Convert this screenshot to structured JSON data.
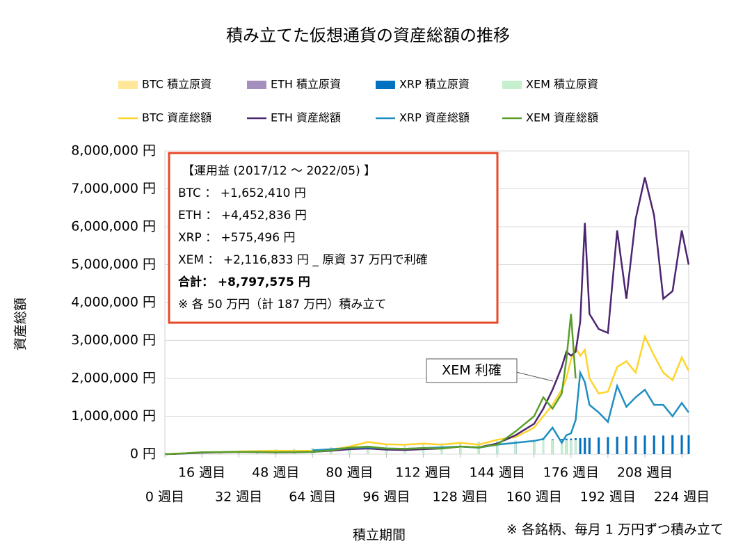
{
  "chart_data": {
    "type": "line",
    "title": "積み立てた仮想通貨の資産総額の推移",
    "xlabel": "積立期間",
    "ylabel": "資産総額",
    "note": "※ 各銘柄、毎月 1 万円ずつ積み立て",
    "callout": "XEM 利確",
    "annotation_box": {
      "heading": "【運用益 (2017/12 ～ 2022/05) 】",
      "lines": [
        "BTC ： +1,652,410 円",
        "ETH ： +4,452,836 円",
        "XRP ： +575,496 円",
        "XEM ： +2,116,833 円 _ 原資 37 万円で利確"
      ],
      "total": "合計： +8,797,575 円",
      "footnote": "※ 各 50 万円（計 187 万円）積み立て"
    },
    "grid": true,
    "xlim": [
      0,
      227
    ],
    "xticks": [
      {
        "value": 0,
        "label": "0 週目"
      },
      {
        "value": 16,
        "label": "16 週目"
      },
      {
        "value": 32,
        "label": "32 週目"
      },
      {
        "value": 48,
        "label": "48 週目"
      },
      {
        "value": 64,
        "label": "64 週目"
      },
      {
        "value": 80,
        "label": "80 週目"
      },
      {
        "value": 96,
        "label": "96 週目"
      },
      {
        "value": 112,
        "label": "112 週目"
      },
      {
        "value": 128,
        "label": "128 週目"
      },
      {
        "value": 144,
        "label": "144 週目"
      },
      {
        "value": 160,
        "label": "160 週目"
      },
      {
        "value": 176,
        "label": "176 週目"
      },
      {
        "value": 192,
        "label": "192 週目"
      },
      {
        "value": 208,
        "label": "208 週目"
      },
      {
        "value": 224,
        "label": "224 週目"
      }
    ],
    "ylim": [
      0,
      8000000
    ],
    "yticks": [
      {
        "value": 0,
        "label": "0 円"
      },
      {
        "value": 1000000,
        "label": "1,000,000 円"
      },
      {
        "value": 2000000,
        "label": "2,000,000 円"
      },
      {
        "value": 3000000,
        "label": "3,000,000 円"
      },
      {
        "value": 4000000,
        "label": "4,000,000 円"
      },
      {
        "value": 5000000,
        "label": "5,000,000 円"
      },
      {
        "value": 6000000,
        "label": "6,000,000 円"
      },
      {
        "value": 7000000,
        "label": "7,000,000 円"
      },
      {
        "value": 8000000,
        "label": "8,000,000 円"
      }
    ],
    "x": [
      0,
      8,
      16,
      24,
      32,
      40,
      48,
      56,
      64,
      72,
      80,
      88,
      96,
      104,
      112,
      120,
      128,
      136,
      144,
      152,
      160,
      164,
      168,
      172,
      174,
      176,
      178,
      180,
      182,
      184,
      188,
      192,
      196,
      200,
      204,
      208,
      212,
      216,
      220,
      224,
      227
    ],
    "series": [
      {
        "name": "BTC 積立原資",
        "type": "bar",
        "color": "#ffe699",
        "values": [
          10000,
          20000,
          40000,
          60000,
          80000,
          100000,
          120000,
          130000,
          150000,
          170000,
          190000,
          210000,
          230000,
          240000,
          260000,
          280000,
          300000,
          320000,
          340000,
          350000,
          370000,
          380000,
          390000,
          400000,
          410000,
          410000,
          420000,
          420000,
          430000,
          430000,
          440000,
          450000,
          460000,
          470000,
          480000,
          490000,
          490000,
          490000,
          500000,
          500000,
          500000
        ]
      },
      {
        "name": "ETH 積立原資",
        "type": "bar",
        "color": "#a48fbf",
        "values": [
          10000,
          20000,
          40000,
          60000,
          80000,
          100000,
          120000,
          130000,
          150000,
          170000,
          190000,
          210000,
          230000,
          240000,
          260000,
          280000,
          300000,
          320000,
          340000,
          350000,
          370000,
          380000,
          390000,
          400000,
          410000,
          410000,
          420000,
          420000,
          430000,
          430000,
          440000,
          450000,
          460000,
          470000,
          480000,
          490000,
          490000,
          490000,
          500000,
          500000,
          500000
        ]
      },
      {
        "name": "XRP 積立原資",
        "type": "bar",
        "color": "#0070c0",
        "values": [
          10000,
          20000,
          40000,
          60000,
          80000,
          100000,
          120000,
          130000,
          150000,
          170000,
          190000,
          210000,
          230000,
          240000,
          260000,
          280000,
          300000,
          320000,
          340000,
          350000,
          370000,
          380000,
          390000,
          400000,
          410000,
          410000,
          420000,
          420000,
          430000,
          430000,
          440000,
          450000,
          460000,
          470000,
          480000,
          490000,
          490000,
          490000,
          500000,
          500000,
          500000
        ]
      },
      {
        "name": "XEM 積立原資",
        "type": "bar",
        "color": "#c6efce",
        "values": [
          10000,
          20000,
          40000,
          60000,
          80000,
          100000,
          120000,
          130000,
          150000,
          170000,
          190000,
          210000,
          230000,
          240000,
          260000,
          280000,
          300000,
          320000,
          340000,
          350000,
          370000,
          370000,
          370000,
          370000,
          370000,
          370000,
          370000,
          null,
          null,
          null,
          null,
          null,
          null,
          null,
          null,
          null,
          null,
          null,
          null,
          null,
          null
        ]
      },
      {
        "name": "BTC 資産総額",
        "type": "line",
        "color": "#ffd42a",
        "values": [
          0,
          20000,
          45000,
          55000,
          70000,
          80000,
          90000,
          85000,
          90000,
          120000,
          200000,
          320000,
          260000,
          250000,
          280000,
          250000,
          300000,
          250000,
          380000,
          450000,
          700000,
          1000000,
          1300000,
          1700000,
          2000000,
          2500000,
          2800000,
          2600000,
          2750000,
          2000000,
          1600000,
          1650000,
          2300000,
          2450000,
          2150000,
          3100000,
          2600000,
          2150000,
          1950000,
          2550000,
          2200000
        ]
      },
      {
        "name": "ETH 資産総額",
        "type": "line",
        "color": "#4b2570",
        "values": [
          0,
          15000,
          40000,
          50000,
          60000,
          55000,
          45000,
          50000,
          60000,
          90000,
          130000,
          150000,
          120000,
          110000,
          130000,
          150000,
          200000,
          180000,
          280000,
          500000,
          800000,
          1200000,
          1700000,
          2300000,
          2700000,
          2600000,
          2700000,
          3500000,
          6100000,
          3700000,
          3300000,
          3200000,
          5900000,
          4100000,
          6200000,
          7300000,
          6300000,
          4100000,
          4300000,
          5900000,
          5000000
        ]
      },
      {
        "name": "XRP 資産総額",
        "type": "line",
        "color": "#1f8fc0",
        "values": [
          null,
          null,
          null,
          null,
          null,
          null,
          null,
          null,
          100000,
          130000,
          160000,
          180000,
          150000,
          140000,
          160000,
          180000,
          200000,
          170000,
          250000,
          300000,
          350000,
          400000,
          700000,
          300000,
          500000,
          550000,
          900000,
          2150000,
          1900000,
          1300000,
          1100000,
          850000,
          1800000,
          1250000,
          1500000,
          1700000,
          1300000,
          1300000,
          1000000,
          1350000,
          1100000
        ]
      },
      {
        "name": "XEM 資産総額",
        "type": "line",
        "color": "#5a9e2a",
        "values": [
          0,
          20000,
          50000,
          55000,
          60000,
          55000,
          50000,
          55000,
          60000,
          100000,
          170000,
          200000,
          150000,
          140000,
          160000,
          150000,
          200000,
          180000,
          250000,
          600000,
          1000000,
          1500000,
          1200000,
          1600000,
          2500000,
          3700000,
          2000000,
          null,
          null,
          null,
          null,
          null,
          null,
          null,
          null,
          null,
          null,
          null,
          null,
          null,
          null
        ]
      }
    ]
  }
}
